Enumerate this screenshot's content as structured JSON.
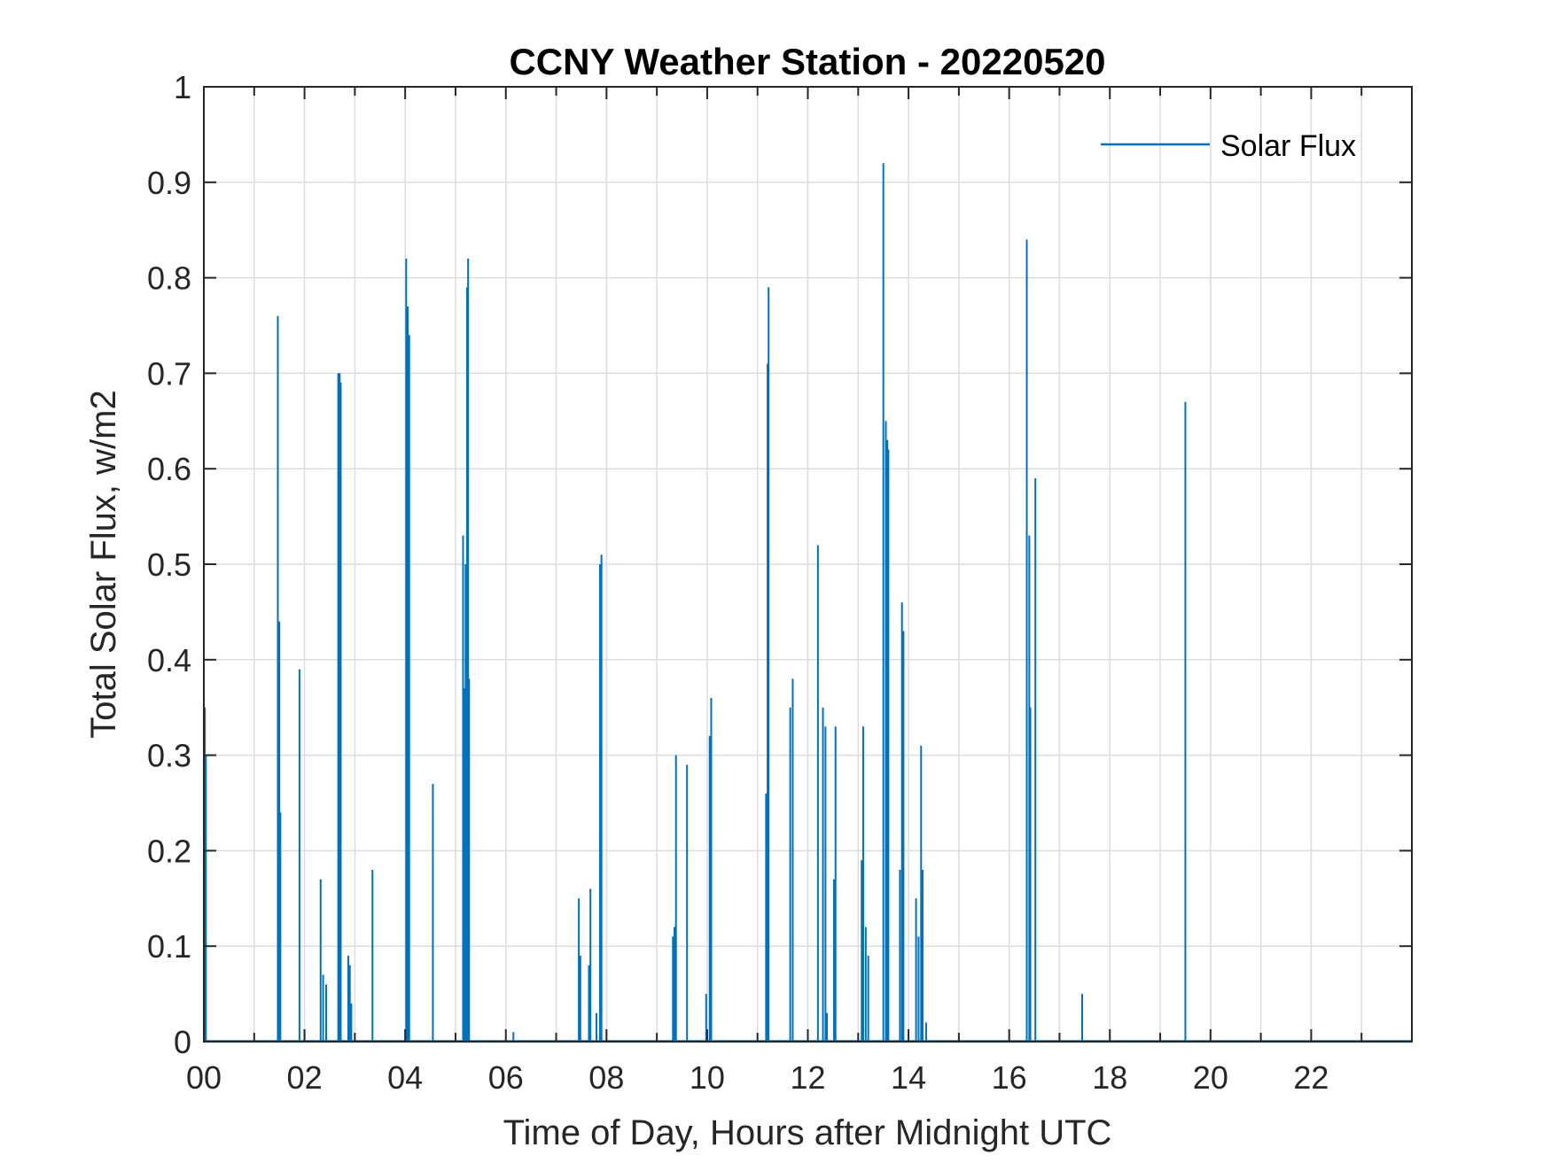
{
  "chart_data": {
    "type": "line",
    "title": "CCNY Weather Station - 20220520",
    "xlabel": "Time of Day, Hours after Midnight UTC",
    "ylabel": "Total Solar Flux, w/m2",
    "xlim": [
      0,
      24
    ],
    "ylim": [
      0,
      1
    ],
    "xticks": [
      0,
      2,
      4,
      6,
      8,
      10,
      12,
      14,
      16,
      18,
      20,
      22
    ],
    "xtick_labels": [
      "00",
      "02",
      "04",
      "06",
      "08",
      "10",
      "12",
      "14",
      "16",
      "18",
      "20",
      "22"
    ],
    "yticks": [
      0,
      0.1,
      0.2,
      0.3,
      0.4,
      0.5,
      0.6,
      0.7,
      0.8,
      0.9,
      1
    ],
    "ytick_labels": [
      "0",
      "0.1",
      "0.2",
      "0.3",
      "0.4",
      "0.5",
      "0.6",
      "0.7",
      "0.8",
      "0.9",
      "1"
    ],
    "grid": true,
    "legend_position": "top-right",
    "series": [
      {
        "name": "Solar Flux",
        "color": "#0072bd",
        "spikes": [
          [
            0.02,
            0.35
          ],
          [
            0.04,
            0.3
          ],
          [
            1.47,
            0.76
          ],
          [
            1.5,
            0.44
          ],
          [
            1.52,
            0.24
          ],
          [
            1.9,
            0.39
          ],
          [
            2.0,
            0.01
          ],
          [
            2.32,
            0.17
          ],
          [
            2.37,
            0.07
          ],
          [
            2.43,
            0.06
          ],
          [
            2.67,
            0.7
          ],
          [
            2.7,
            0.7
          ],
          [
            2.72,
            0.69
          ],
          [
            2.87,
            0.09
          ],
          [
            2.9,
            0.08
          ],
          [
            2.93,
            0.04
          ],
          [
            3.35,
            0.18
          ],
          [
            4.02,
            0.82
          ],
          [
            4.05,
            0.77
          ],
          [
            4.08,
            0.74
          ],
          [
            4.55,
            0.27
          ],
          [
            5.15,
            0.53
          ],
          [
            5.18,
            0.37
          ],
          [
            5.2,
            0.5
          ],
          [
            5.23,
            0.79
          ],
          [
            5.25,
            0.82
          ],
          [
            5.27,
            0.38
          ],
          [
            6.15,
            0.01
          ],
          [
            7.45,
            0.15
          ],
          [
            7.48,
            0.09
          ],
          [
            7.65,
            0.08
          ],
          [
            7.68,
            0.16
          ],
          [
            7.8,
            0.03
          ],
          [
            7.87,
            0.5
          ],
          [
            7.9,
            0.51
          ],
          [
            9.32,
            0.11
          ],
          [
            9.35,
            0.12
          ],
          [
            9.38,
            0.3
          ],
          [
            9.6,
            0.29
          ],
          [
            9.98,
            0.05
          ],
          [
            10.05,
            0.32
          ],
          [
            10.08,
            0.36
          ],
          [
            11.17,
            0.26
          ],
          [
            11.2,
            0.71
          ],
          [
            11.22,
            0.79
          ],
          [
            11.65,
            0.35
          ],
          [
            11.7,
            0.38
          ],
          [
            12.2,
            0.52
          ],
          [
            12.3,
            0.35
          ],
          [
            12.35,
            0.33
          ],
          [
            12.38,
            0.03
          ],
          [
            12.52,
            0.17
          ],
          [
            12.55,
            0.33
          ],
          [
            13.07,
            0.19
          ],
          [
            13.1,
            0.33
          ],
          [
            13.15,
            0.12
          ],
          [
            13.2,
            0.09
          ],
          [
            13.5,
            0.92
          ],
          [
            13.55,
            0.65
          ],
          [
            13.58,
            0.63
          ],
          [
            13.6,
            0.62
          ],
          [
            13.83,
            0.18
          ],
          [
            13.87,
            0.46
          ],
          [
            13.9,
            0.43
          ],
          [
            14.15,
            0.15
          ],
          [
            14.2,
            0.11
          ],
          [
            14.25,
            0.31
          ],
          [
            14.28,
            0.18
          ],
          [
            14.35,
            0.02
          ],
          [
            16.35,
            0.84
          ],
          [
            16.4,
            0.53
          ],
          [
            16.42,
            0.35
          ],
          [
            16.52,
            0.59
          ],
          [
            17.45,
            0.05
          ],
          [
            19.5,
            0.67
          ]
        ]
      }
    ]
  }
}
